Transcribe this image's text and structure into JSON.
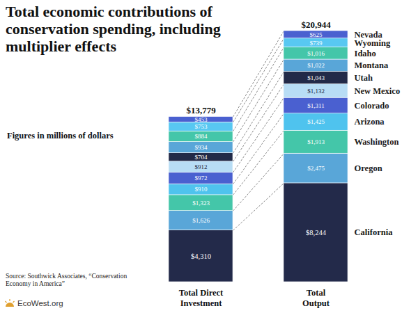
{
  "chart_data": {
    "type": "bar",
    "title": "Total economic contributions of conservation spending, including multiplier effects",
    "subtitle": "Figures in millions of dollars",
    "categories": [
      "Total Direct Investment",
      "Total Output"
    ],
    "stacked": true,
    "data_labels": true,
    "tick_labels": false,
    "series": [
      {
        "name": "California",
        "color": "#232a4a",
        "values": [
          4310,
          8244
        ],
        "value_labels": [
          "$4,310",
          "$8,244"
        ]
      },
      {
        "name": "Oregon",
        "color": "#59a6d8",
        "values": [
          1626,
          2475
        ],
        "value_labels": [
          "$1,626",
          "$2,475"
        ]
      },
      {
        "name": "Washington",
        "color": "#44c6a9",
        "values": [
          1323,
          1913
        ],
        "value_labels": [
          "$1,323",
          "$1,913"
        ]
      },
      {
        "name": "Arizona",
        "color": "#4fc3ee",
        "values": [
          910,
          1425
        ],
        "value_labels": [
          "$910",
          "$1,425"
        ]
      },
      {
        "name": "Colorado",
        "color": "#4a60d0",
        "values": [
          972,
          1311
        ],
        "value_labels": [
          "$972",
          "$1,311"
        ]
      },
      {
        "name": "New Mexico",
        "color": "#b8ddf5",
        "values": [
          912,
          1132
        ],
        "value_labels": [
          "$912",
          "$1,132"
        ]
      },
      {
        "name": "Utah",
        "color": "#222a48",
        "values": [
          704,
          1043
        ],
        "value_labels": [
          "$704",
          "$1,043"
        ]
      },
      {
        "name": "Montana",
        "color": "#59a6d8",
        "values": [
          934,
          1022
        ],
        "value_labels": [
          "$934",
          "$1,022"
        ]
      },
      {
        "name": "Idaho",
        "color": "#44c6a9",
        "values": [
          884,
          1016
        ],
        "value_labels": [
          "$884",
          "$1,016"
        ]
      },
      {
        "name": "Wyoming",
        "color": "#58c8f2",
        "values": [
          753,
          739
        ],
        "value_labels": [
          "$753",
          "$739"
        ]
      },
      {
        "name": "Nevada",
        "color": "#4a60d0",
        "values": [
          453,
          625
        ],
        "value_labels": [
          "$453",
          "$625"
        ]
      }
    ],
    "totals": [
      13779,
      20944
    ],
    "total_labels": [
      "$13,779",
      "$20,944"
    ],
    "source": "Source: Southwick Associates, “Conservation Economy in America”",
    "credit": "EcoWest.org"
  }
}
